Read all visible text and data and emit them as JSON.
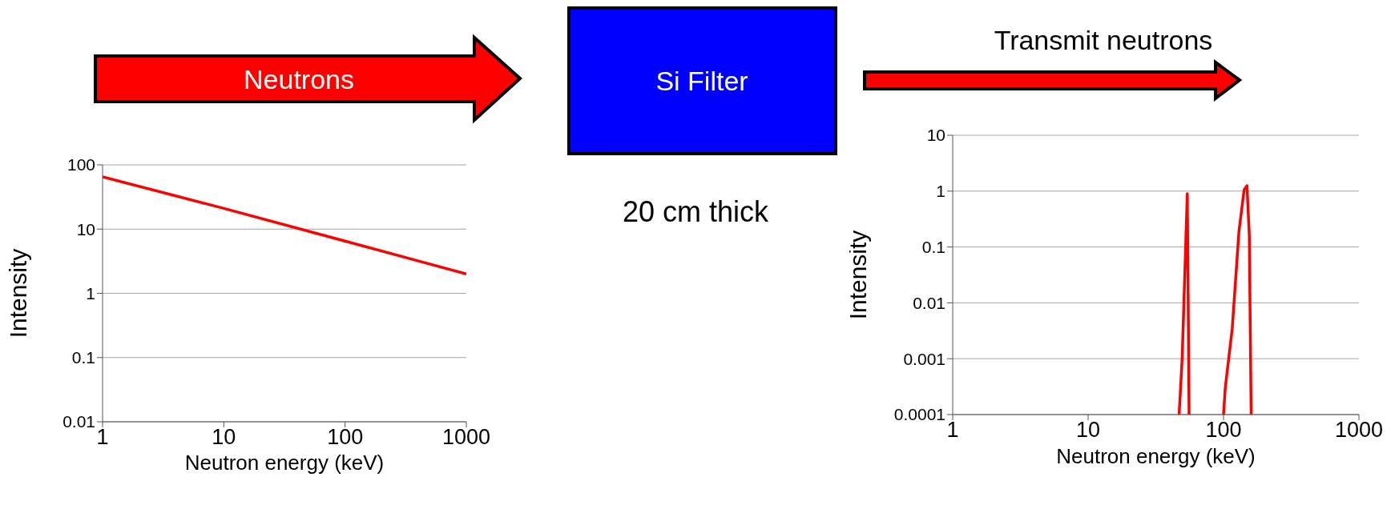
{
  "chart_data": [
    {
      "type": "line",
      "xlabel": "Neutron energy (keV)",
      "ylabel": "Intensity",
      "log": "xy",
      "xlim": [
        1,
        1000
      ],
      "xticks": [
        1,
        10,
        100,
        1000
      ],
      "ylim": [
        0.01,
        100
      ],
      "yticks": [
        0.01,
        0.1,
        1,
        10,
        100
      ],
      "grid": "y",
      "marker": "none",
      "line_style": "solid",
      "series": [
        {
          "color": "#ff0000",
          "x": [
            1,
            10,
            100,
            1000
          ],
          "values": [
            65,
            21,
            6.5,
            2
          ]
        }
      ]
    },
    {
      "type": "other",
      "annotations": [
        "Neutrons",
        "Si Filter",
        "20 cm thick",
        "Transmit neutrons"
      ]
    },
    {
      "type": "line",
      "xlabel": "Neutron energy (keV)",
      "ylabel": "Intensity",
      "log": "xy",
      "xlim": [
        1,
        1000
      ],
      "xticks": [
        1,
        10,
        100,
        1000
      ],
      "ylim": [
        0.0001,
        10
      ],
      "yticks": [
        0.0001,
        0.001,
        0.01,
        0.1,
        1,
        10
      ],
      "grid": "y",
      "marker": "none",
      "line_style": "solid",
      "series": [
        {
          "color": "#ff0000",
          "x": [
            47,
            49.5,
            54,
            55.7
          ],
          "values": [
            0.0001,
            0.001,
            0.9,
            0.0001
          ]
        },
        {
          "color": "#ff0000",
          "x": [
            100,
            103,
            116,
            130,
            142,
            149,
            155,
            160
          ],
          "values": [
            0.0001,
            0.0003,
            0.0035,
            0.19,
            1.06,
            1.25,
            0.16,
            0.0001
          ]
        }
      ]
    }
  ]
}
